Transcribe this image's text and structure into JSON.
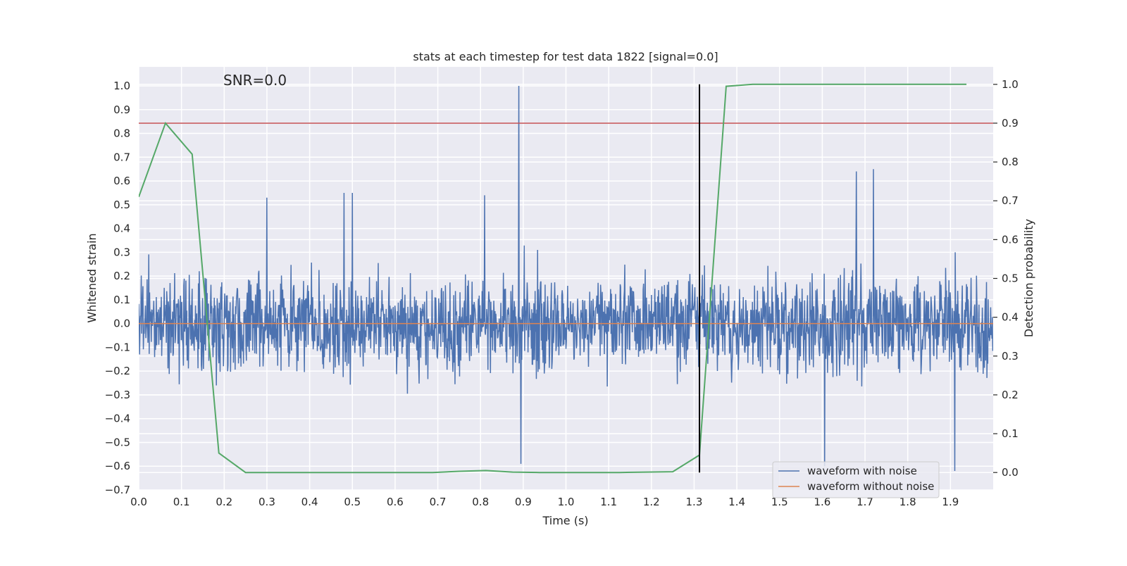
{
  "chart_data": {
    "type": "line",
    "title": "stats at each timestep for test data 1822 [signal=0.0]",
    "annotation": "SNR=0.0",
    "xlabel": "Time (s)",
    "ylabel": "Whitened strain",
    "y2label": "Detection probability",
    "xlim": [
      0.0,
      2.0
    ],
    "ylim": [
      -0.7,
      1.08
    ],
    "y2lim": [
      -0.045,
      1.045
    ],
    "xticks": [
      "0.0",
      "0.1",
      "0.2",
      "0.3",
      "0.4",
      "0.5",
      "0.6",
      "0.7",
      "0.8",
      "0.9",
      "1.0",
      "1.1",
      "1.2",
      "1.3",
      "1.4",
      "1.5",
      "1.6",
      "1.7",
      "1.8",
      "1.9"
    ],
    "yticks": [
      "−0.7",
      "−0.6",
      "−0.5",
      "−0.4",
      "−0.3",
      "−0.2",
      "−0.1",
      "0.0",
      "0.1",
      "0.2",
      "0.3",
      "0.4",
      "0.5",
      "0.6",
      "0.7",
      "0.8",
      "0.9",
      "1.0"
    ],
    "y2ticks": [
      "0.0",
      "0.1",
      "0.2",
      "0.3",
      "0.4",
      "0.5",
      "0.6",
      "0.7",
      "0.8",
      "0.9",
      "1.0"
    ],
    "grid": true,
    "legend_position": "lower-right",
    "series": [
      {
        "name": "waveform with noise",
        "axis": "left",
        "color": "#4c72b0",
        "style": "dense noise, mostly between -0.55 and 0.55",
        "notable_peaks": [
          {
            "x": 0.89,
            "y": 1.0
          },
          {
            "x": 0.895,
            "y": -0.59
          },
          {
            "x": 1.605,
            "y": -0.6
          },
          {
            "x": 1.91,
            "y": -0.62
          },
          {
            "x": 1.72,
            "y": 0.65
          },
          {
            "x": 1.68,
            "y": 0.64
          },
          {
            "x": 0.3,
            "y": 0.53
          },
          {
            "x": 0.48,
            "y": 0.55
          },
          {
            "x": 0.5,
            "y": 0.55
          },
          {
            "x": 0.81,
            "y": 0.54
          }
        ]
      },
      {
        "name": "waveform without noise",
        "axis": "left",
        "color": "#dd8452",
        "x": [
          0.0,
          2.0
        ],
        "y": [
          0.0,
          0.0
        ]
      },
      {
        "name": "detection probability",
        "axis": "right",
        "color": "#55a868",
        "x": [
          0.0,
          0.0625,
          0.125,
          0.1875,
          0.25,
          0.3125,
          0.375,
          0.4375,
          0.5,
          0.5625,
          0.625,
          0.6875,
          0.75,
          0.8125,
          0.875,
          0.9375,
          1.0,
          1.0625,
          1.125,
          1.1875,
          1.25,
          1.3125,
          1.375,
          1.4375,
          1.5,
          1.5625,
          1.625,
          1.6875,
          1.75,
          1.8125,
          1.875,
          1.9375
        ],
        "y": [
          0.71,
          0.9,
          0.82,
          0.05,
          0.0,
          0.0,
          0.0,
          0.0,
          0.0,
          0.0,
          0.0,
          0.0,
          0.003,
          0.005,
          0.001,
          0.0,
          0.0,
          0.0,
          0.0,
          0.001,
          0.002,
          0.045,
          0.995,
          1.0,
          1.0,
          1.0,
          1.0,
          1.0,
          1.0,
          1.0,
          1.0,
          1.0
        ]
      }
    ],
    "threshold_line": {
      "axis": "right",
      "y": 0.9,
      "color": "#c44e52"
    },
    "vertical_marker": {
      "x": 1.3125,
      "y2_range": [
        0.0,
        1.0
      ],
      "color": "#000000"
    }
  }
}
